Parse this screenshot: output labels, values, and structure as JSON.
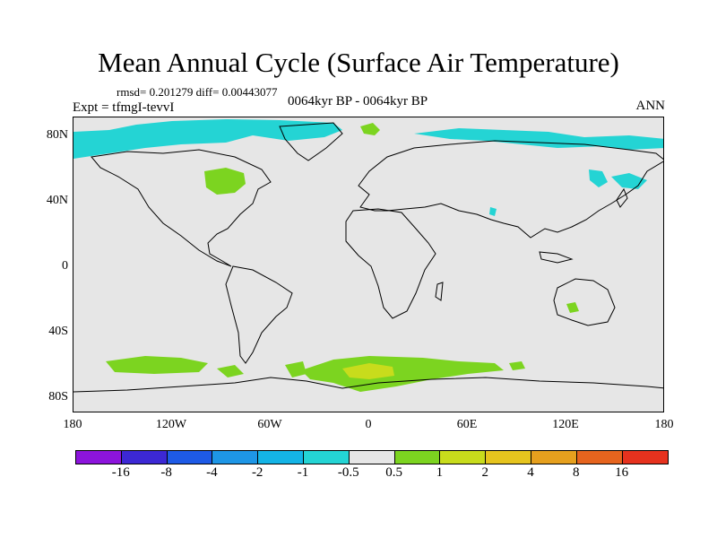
{
  "header": {
    "title": "Mean Annual Cycle (Surface Air Temperature)",
    "stats": "rmsd= 0.201279 diff= 0.00443077",
    "experiment": "Expt = tfmgI-tevvI",
    "period": "0064kyr BP - 0064kyr BP",
    "season": "ANN"
  },
  "map": {
    "projection": "cylindrical-equidistant",
    "lon_range": [
      -180,
      180
    ],
    "lat_range": [
      -90,
      90
    ],
    "y_ticks": [
      "80N",
      "40N",
      "0",
      "40S",
      "80S"
    ],
    "x_ticks": [
      "180",
      "120W",
      "60W",
      "0",
      "60E",
      "120E",
      "180"
    ],
    "background_color": "#e6e6e6",
    "coastline_color": "#000000",
    "features": [
      {
        "name": "arctic-cool-band",
        "category": "-1 to -0.5",
        "color": "#24d4d4"
      },
      {
        "name": "greenland-warm-patch",
        "category": "0.5 to 1",
        "color": "#7cd420"
      },
      {
        "name": "north-america-warm-patch",
        "category": "0.5 to 1",
        "color": "#7cd420"
      },
      {
        "name": "east-asia-cool-patch",
        "category": "-1 to -0.5",
        "color": "#24d4d4"
      },
      {
        "name": "antarctic-warm-band",
        "category": "0.5 to 1",
        "color": "#7cd420"
      },
      {
        "name": "antarctic-core",
        "category": "1 to 2",
        "color": "#c8dc1c"
      }
    ]
  },
  "colorbar": {
    "colors": [
      "#8c14dc",
      "#3c28d4",
      "#1e5ae6",
      "#1e96e6",
      "#14b4e6",
      "#24d4d4",
      "#e6e6e6",
      "#7cd420",
      "#c8dc1c",
      "#e6c41e",
      "#e6a01e",
      "#e6641e",
      "#e6321e"
    ],
    "labels": [
      "-16",
      "-8",
      "-4",
      "-2",
      "-1",
      "-0.5",
      "0.5",
      "1",
      "2",
      "4",
      "8",
      "16"
    ]
  }
}
